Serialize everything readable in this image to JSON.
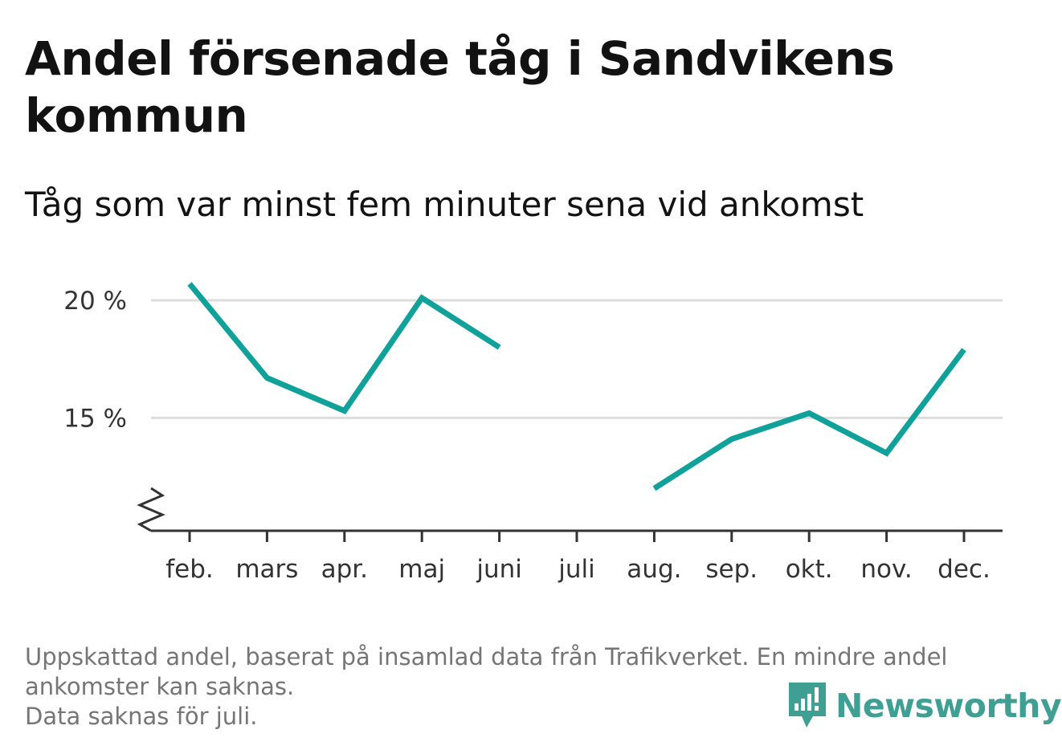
{
  "title": "Andel försenade tåg i Sandvikens kommun",
  "subtitle": "Tåg som var minst fem minuter sena vid ankomst",
  "notes": [
    "Uppskattad andel, baserat på insamlad data från Trafikverket. En mindre andel",
    "ankomster kan saknas.",
    "Data saknas för juli."
  ],
  "brand": {
    "name": "Newsworthy",
    "icon": "newsworthy-logo-icon",
    "color": "#3f9f93"
  },
  "chart_data": {
    "type": "line",
    "title": "Andel försenade tåg i Sandvikens kommun",
    "subtitle": "Tåg som var minst fem minuter sena vid ankomst",
    "xlabel": "",
    "ylabel": "",
    "categories": [
      "feb.",
      "mars",
      "apr.",
      "maj",
      "juni",
      "juli",
      "aug.",
      "sep.",
      "okt.",
      "nov.",
      "dec."
    ],
    "series": [
      {
        "values": [
          20.7,
          16.7,
          15.3,
          20.1,
          18.0,
          null,
          12.0,
          14.1,
          15.2,
          13.5,
          17.9
        ],
        "color": "#0fa19a"
      }
    ],
    "yticks": [
      15,
      20
    ],
    "ytick_labels": [
      "15 %",
      "20 %"
    ],
    "ylim": [
      10.2,
      21.5
    ],
    "axis_break": true,
    "grid": true,
    "colors": {
      "line": "#0fa19a",
      "grid": "#dddddd",
      "axis": "#333333"
    }
  }
}
